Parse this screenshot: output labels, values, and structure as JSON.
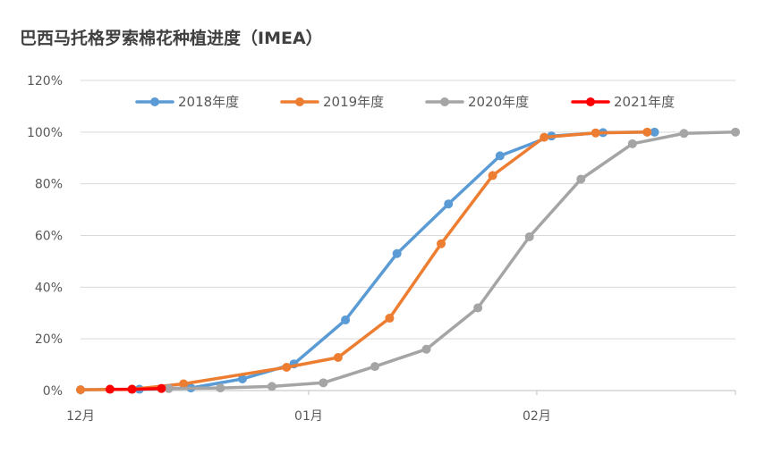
{
  "chart_data": {
    "type": "line",
    "title": "巴西马托格罗索棉花种植进度（IMEA）",
    "xlabel": "",
    "ylabel": "",
    "x_range": [
      0,
      89
    ],
    "x_ticks": [
      {
        "label": "12月",
        "x": 0
      },
      {
        "label": "01月",
        "x": 31
      },
      {
        "label": "02月",
        "x": 62
      }
    ],
    "y_ticks": [
      "0%",
      "20%",
      "40%",
      "60%",
      "80%",
      "100%",
      "120%"
    ],
    "ylim": [
      0,
      120
    ],
    "grid": true,
    "legend_position": "top",
    "series": [
      {
        "name": "2018年度",
        "color": "#5B9BD5",
        "points": [
          [
            0,
            0.3
          ],
          [
            8,
            0.5
          ],
          [
            15,
            1.0
          ],
          [
            22,
            4.5
          ],
          [
            29,
            10.3
          ],
          [
            36,
            27.3
          ],
          [
            43,
            53.0
          ],
          [
            50,
            72.2
          ],
          [
            57,
            90.8
          ],
          [
            64,
            98.5
          ],
          [
            71,
            99.8
          ],
          [
            78,
            100
          ]
        ]
      },
      {
        "name": "2019年度",
        "color": "#ED7D31",
        "points": [
          [
            0,
            0.3
          ],
          [
            7,
            0.5
          ],
          [
            14,
            2.6
          ],
          [
            28,
            9.0
          ],
          [
            35,
            12.8
          ],
          [
            42,
            28.0
          ],
          [
            49,
            56.8
          ],
          [
            56,
            83.2
          ],
          [
            63,
            98.0
          ],
          [
            70,
            99.7
          ],
          [
            77,
            100
          ]
        ]
      },
      {
        "name": "2020年度",
        "color": "#A5A5A5",
        "points": [
          [
            12,
            0.8
          ],
          [
            19,
            1.0
          ],
          [
            26,
            1.6
          ],
          [
            33,
            3.0
          ],
          [
            40,
            9.3
          ],
          [
            47,
            16.0
          ],
          [
            54,
            32.0
          ],
          [
            61,
            59.5
          ],
          [
            68,
            81.8
          ],
          [
            75,
            95.5
          ],
          [
            82,
            99.5
          ],
          [
            89,
            100
          ]
        ]
      },
      {
        "name": "2021年度",
        "color": "#FF0000",
        "points": [
          [
            4,
            0.5
          ],
          [
            7,
            0.5
          ],
          [
            11,
            0.8
          ]
        ]
      }
    ]
  }
}
